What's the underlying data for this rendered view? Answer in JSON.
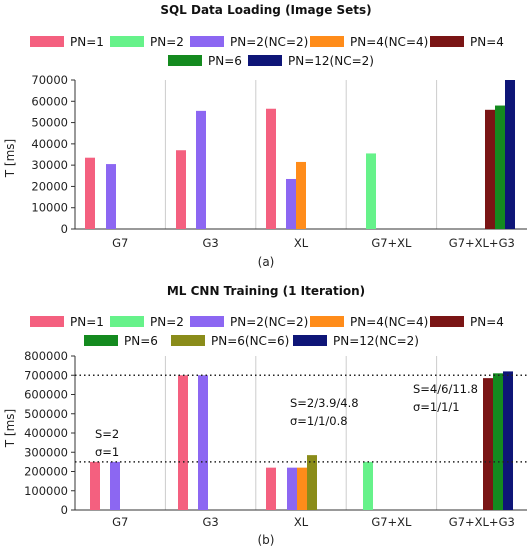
{
  "chart_data": [
    {
      "type": "bar",
      "title": "SQL Data Loading (Image Sets)",
      "ylabel": "T [ms]",
      "sublabel": "(a)",
      "ylim": [
        0,
        70000
      ],
      "yticks": [
        "0",
        "10000",
        "20000",
        "30000",
        "40000",
        "50000",
        "60000",
        "70000"
      ],
      "categories": [
        "G7",
        "G3",
        "XL",
        "G7+XL",
        "G7+XL+G3"
      ],
      "grid": "vertical lines between categories",
      "legend_position": "top",
      "series": [
        {
          "name": "PN=1",
          "color": "#f4607f",
          "values": [
            33500,
            37000,
            56500,
            null,
            null
          ]
        },
        {
          "name": "PN=2",
          "color": "#66f28a",
          "values": [
            null,
            null,
            null,
            35500,
            null
          ]
        },
        {
          "name": "PN=2(NC=2)",
          "color": "#8c67f2",
          "values": [
            30500,
            55500,
            23500,
            null,
            null
          ]
        },
        {
          "name": "PN=4(NC=4)",
          "color": "#ff8c1a",
          "values": [
            null,
            null,
            31500,
            null,
            null
          ]
        },
        {
          "name": "PN=4",
          "color": "#7a1515",
          "values": [
            null,
            null,
            null,
            null,
            56000
          ]
        },
        {
          "name": "PN=6",
          "color": "#148a1f",
          "values": [
            null,
            null,
            null,
            null,
            58000
          ]
        },
        {
          "name": "PN=12(NC=2)",
          "color": "#0e1577",
          "values": [
            null,
            null,
            null,
            null,
            70000
          ]
        }
      ]
    },
    {
      "type": "bar",
      "title": "ML CNN Training (1 Iteration)",
      "ylabel": "T [ms]",
      "sublabel": "(b)",
      "ylim": [
        0,
        800000
      ],
      "yticks": [
        "0",
        "100000",
        "200000",
        "300000",
        "400000",
        "500000",
        "600000",
        "700000",
        "800000"
      ],
      "categories": [
        "G7",
        "G3",
        "XL",
        "G7+XL",
        "G7+XL+G3"
      ],
      "grid": "vertical lines between categories",
      "legend_position": "top",
      "reference_lines": [
        250000,
        700000
      ],
      "annotations": [
        {
          "lines": [
            "S=2",
            "σ=1"
          ],
          "category": "G7"
        },
        {
          "lines": [
            "S=2/3.9/4.8",
            "σ=1/1/0.8"
          ],
          "category": "XL"
        },
        {
          "lines": [
            "S=4/6/11.8",
            "σ=1/1/1"
          ],
          "category": "G7+XL+G3"
        }
      ],
      "series": [
        {
          "name": "PN=1",
          "color": "#f4607f",
          "values": [
            250000,
            700000,
            220000,
            null,
            null
          ]
        },
        {
          "name": "PN=2",
          "color": "#66f28a",
          "values": [
            null,
            null,
            null,
            250000,
            null
          ]
        },
        {
          "name": "PN=2(NC=2)",
          "color": "#8c67f2",
          "values": [
            250000,
            700000,
            220000,
            null,
            null
          ]
        },
        {
          "name": "PN=4(NC=4)",
          "color": "#ff8c1a",
          "values": [
            null,
            null,
            220000,
            null,
            null
          ]
        },
        {
          "name": "PN=4",
          "color": "#7a1515",
          "values": [
            null,
            null,
            null,
            null,
            685000
          ]
        },
        {
          "name": "PN=6",
          "color": "#148a1f",
          "values": [
            null,
            null,
            285000,
            null,
            710000
          ]
        },
        {
          "name": "PN=6(NC=6)",
          "color": "#8a8c1a",
          "values": [
            null,
            null,
            285000,
            null,
            null
          ]
        },
        {
          "name": "PN=12(NC=2)",
          "color": "#0e1577",
          "values": [
            null,
            null,
            null,
            null,
            720000
          ]
        }
      ]
    }
  ]
}
